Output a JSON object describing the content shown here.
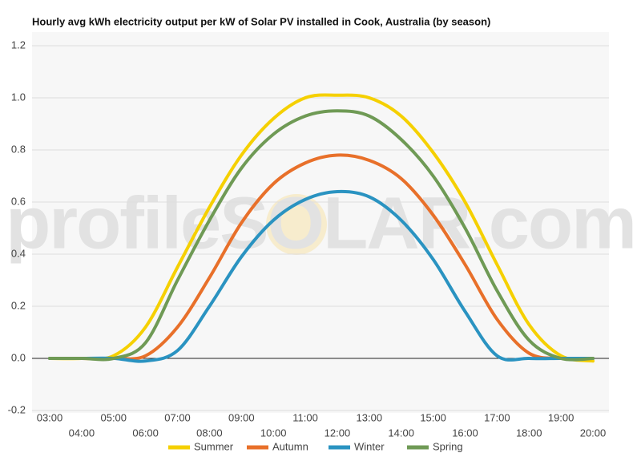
{
  "chart_data": {
    "type": "line",
    "title": "Hourly avg kWh electricity output per kW of Solar PV installed in Cook, Australia (by season)",
    "watermark": "profileSOLAR.com",
    "categories": [
      "03:00",
      "04:00",
      "05:00",
      "06:00",
      "07:00",
      "08:00",
      "09:00",
      "10:00",
      "11:00",
      "12:00",
      "13:00",
      "14:00",
      "15:00",
      "16:00",
      "17:00",
      "18:00",
      "19:00",
      "20:00"
    ],
    "series": [
      {
        "name": "Summer",
        "color": "#f5d000",
        "values": [
          0,
          0,
          0.01,
          0.12,
          0.35,
          0.58,
          0.78,
          0.92,
          1.0,
          1.01,
          1.0,
          0.93,
          0.79,
          0.6,
          0.36,
          0.13,
          0.01,
          -0.01
        ]
      },
      {
        "name": "Autumn",
        "color": "#e8702a",
        "values": [
          0,
          0,
          0,
          0.01,
          0.12,
          0.31,
          0.52,
          0.67,
          0.75,
          0.78,
          0.76,
          0.69,
          0.55,
          0.36,
          0.15,
          0.02,
          0,
          0
        ]
      },
      {
        "name": "Winter",
        "color": "#2a93c1",
        "values": [
          0,
          0,
          0,
          -0.01,
          0.03,
          0.2,
          0.39,
          0.53,
          0.61,
          0.64,
          0.62,
          0.53,
          0.38,
          0.18,
          0.01,
          0,
          0,
          0
        ]
      },
      {
        "name": "Spring",
        "color": "#6f9a55",
        "values": [
          0,
          0,
          0,
          0.06,
          0.3,
          0.53,
          0.73,
          0.86,
          0.93,
          0.95,
          0.93,
          0.84,
          0.7,
          0.5,
          0.26,
          0.07,
          0,
          0
        ]
      }
    ],
    "ylim": [
      -0.2,
      1.2
    ],
    "yticks": [
      -0.2,
      {
        "value": 0,
        "label": "0.0"
      },
      0.2,
      0.4,
      0.6,
      0.8,
      {
        "value": 1,
        "label": "1.0"
      },
      1.2
    ],
    "grid": true,
    "legend": "bottom"
  }
}
